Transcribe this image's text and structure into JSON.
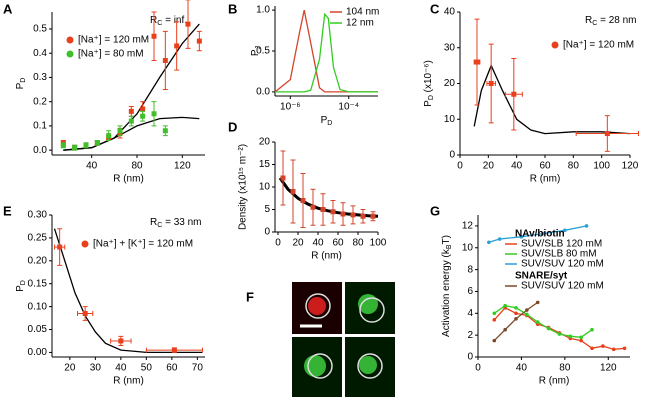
{
  "chart_data": [
    {
      "type": "scatter",
      "panel": "A",
      "xlabel": "R (nm)",
      "ylabel": {
        "text": "P",
        "sub": "D"
      },
      "annotation": {
        "text": "R",
        "sub": "C",
        "after": " = inf."
      },
      "xlim": [
        5,
        140
      ],
      "xticks": [
        40,
        80,
        120
      ],
      "ylim": [
        -0.02,
        0.57
      ],
      "yticks": [
        {
          "value": 0,
          "label": "0.0"
        },
        0.1,
        0.2,
        0.3,
        0.4,
        0.5
      ],
      "series": [
        {
          "name": "[Na⁺] = 120 mM",
          "color": "#e8401c",
          "x": [
            15,
            25,
            35,
            45,
            55,
            65,
            75,
            85,
            95,
            105,
            115,
            125,
            135
          ],
          "values": [
            0.03,
            0.01,
            0.02,
            0.03,
            0.05,
            0.07,
            0.16,
            0.17,
            0.47,
            0.37,
            0.43,
            0.52,
            0.45
          ],
          "errors": [
            0.01,
            0.01,
            0.01,
            0.01,
            0.01,
            0.02,
            0.02,
            0.03,
            0.1,
            0.12,
            0.1,
            0.1,
            0.04
          ]
        },
        {
          "name": "[Na⁺] = 80 mM",
          "color": "#3fbf2a",
          "x": [
            15,
            25,
            35,
            45,
            55,
            65,
            75,
            85,
            95,
            105
          ],
          "values": [
            0.02,
            0.01,
            0.02,
            0.03,
            0.06,
            0.08,
            0.12,
            0.14,
            0.15,
            0.08
          ],
          "errors": [
            0.01,
            0.01,
            0.01,
            0.01,
            0.02,
            0.02,
            0.02,
            0.02,
            0.05,
            0.02
          ]
        }
      ],
      "fits": [
        {
          "color": "#000000",
          "x": [
            15,
            40,
            60,
            80,
            100,
            120,
            135
          ],
          "values": [
            0,
            0.01,
            0.05,
            0.15,
            0.3,
            0.44,
            0.52
          ]
        },
        {
          "color": "#000000",
          "x": [
            15,
            40,
            60,
            80,
            100,
            120,
            135
          ],
          "values": [
            0,
            0.01,
            0.05,
            0.1,
            0.13,
            0.135,
            0.13
          ]
        }
      ]
    },
    {
      "type": "line",
      "panel": "B",
      "xlabel": {
        "text": "P",
        "sub": "D"
      },
      "ylabel": {
        "text": "P",
        "sub": "J"
      },
      "xscale": "log",
      "xlim": [
        3e-07,
        0.001
      ],
      "xticks": [
        {
          "value": 1e-06,
          "label": "10⁻⁶"
        },
        {
          "value": 0.0001,
          "label": "10⁻⁴"
        }
      ],
      "ylim": [
        -0.05,
        1.05
      ],
      "yticks": [
        {
          "value": 0,
          "label": "0.0"
        },
        0.5,
        {
          "value": 1,
          "label": "1.0"
        }
      ],
      "x": [
        3e-07,
        1e-06,
        2e-06,
        3e-06,
        5e-06,
        1e-05,
        1.5e-05,
        2e-05,
        3e-05,
        5e-05,
        0.0001,
        0.001
      ],
      "series": [
        {
          "name": "104 nm",
          "color": "#d4442a",
          "values": [
            0,
            0.15,
            0.7,
            1.0,
            0.6,
            0.05,
            0,
            0,
            0,
            0,
            0,
            0
          ]
        },
        {
          "name": "12 nm",
          "color": "#33cc22",
          "values": [
            0,
            0,
            0,
            0,
            0.02,
            0.4,
            0.95,
            0.9,
            0.3,
            0.03,
            0,
            0
          ]
        }
      ]
    },
    {
      "type": "scatter",
      "panel": "C",
      "xlabel": "R (nm)",
      "ylabel": {
        "text": "P",
        "sub": "D",
        "after": " (x10⁻⁶)"
      },
      "annotation": {
        "text": "R",
        "sub": "C",
        "after": " = 28 nm"
      },
      "xlim": [
        0,
        120
      ],
      "xticks": [
        0,
        20,
        40,
        60,
        80,
        100,
        120
      ],
      "ylim": [
        0,
        40
      ],
      "yticks": [
        0,
        10,
        20,
        30,
        40
      ],
      "series": [
        {
          "name": "[Na⁺] = 120 mM",
          "color": "#e8401c",
          "x": [
            12,
            22,
            38,
            104
          ],
          "values": [
            26,
            20,
            17,
            6
          ],
          "errors": [
            12,
            11,
            10,
            5
          ],
          "xerrors": [
            2,
            3,
            6,
            22
          ]
        }
      ],
      "fits": [
        {
          "color": "#000000",
          "x": [
            10,
            15,
            22,
            30,
            40,
            50,
            60,
            80,
            100,
            120
          ],
          "values": [
            8,
            18,
            25,
            18,
            10,
            7,
            6,
            6.5,
            6.5,
            6
          ]
        }
      ]
    },
    {
      "type": "scatter",
      "panel": "D",
      "xlabel": "R (nm)",
      "ylabel": "Density (x10¹⁵ m⁻²)",
      "xlim": [
        -3,
        100
      ],
      "xticks": [
        0,
        20,
        40,
        60,
        80,
        100
      ],
      "ylim": [
        0,
        20
      ],
      "yticks": [
        0,
        5,
        10,
        15,
        20
      ],
      "series": [
        {
          "color": "#d4442a",
          "x": [
            5,
            15,
            25,
            35,
            45,
            55,
            65,
            75,
            85,
            95
          ],
          "values": [
            12,
            9,
            7,
            5.5,
            5,
            4.5,
            4,
            3.8,
            3.5,
            3.5
          ],
          "errors": [
            6,
            7,
            6,
            4,
            3.5,
            2.5,
            2.5,
            2,
            1.5,
            1
          ]
        }
      ],
      "fits": [
        {
          "color": "#000000",
          "x": [
            2,
            10,
            20,
            30,
            40,
            50,
            60,
            70,
            80,
            90,
            100
          ],
          "values": [
            12,
            9.5,
            7.5,
            6.2,
            5.3,
            4.7,
            4.3,
            4,
            3.8,
            3.6,
            3.5
          ]
        }
      ]
    },
    {
      "type": "scatter",
      "panel": "E",
      "xlabel": "R (nm)",
      "ylabel": {
        "text": "P",
        "sub": "D"
      },
      "annotation": {
        "text": "R",
        "sub": "C",
        "after": " = 33 nm"
      },
      "xlim": [
        13,
        73
      ],
      "xticks": [
        20,
        30,
        40,
        50,
        60,
        70
      ],
      "ylim": [
        -0.01,
        0.3
      ],
      "yticks": [
        {
          "value": 0,
          "label": "0.00"
        },
        0.05,
        {
          "value": 0.1,
          "label": "0.10"
        },
        0.15,
        {
          "value": 0.2,
          "label": "0.20"
        },
        0.25,
        {
          "value": 0.3,
          "label": "0.30"
        }
      ],
      "series": [
        {
          "name": "[Na⁺] + [K⁺] = 120 mM",
          "color": "#e8401c",
          "x": [
            16,
            26,
            40,
            61
          ],
          "values": [
            0.23,
            0.085,
            0.025,
            0.005
          ],
          "errors": [
            0.04,
            0.015,
            0.01,
            0.005
          ],
          "xerrors": [
            2,
            3,
            4,
            11
          ]
        }
      ],
      "fits": [
        {
          "color": "#000000",
          "x": [
            14,
            18,
            22,
            26,
            30,
            34,
            40,
            50,
            60,
            72
          ],
          "values": [
            0.27,
            0.2,
            0.13,
            0.08,
            0.045,
            0.02,
            0.005,
            0,
            0,
            0
          ]
        }
      ]
    },
    {
      "type": "line",
      "panel": "G",
      "xlabel": "R (nm)",
      "ylabel": {
        "text": "Activation energy  (k",
        "sub": "B",
        "after": "T)"
      },
      "legend_headers": [
        "NAv/biotin",
        "SNARE/syt"
      ],
      "xlim": [
        0,
        140
      ],
      "xticks": [
        0,
        40,
        80,
        120
      ],
      "ylim": [
        0,
        13
      ],
      "yticks": [
        0,
        2,
        4,
        6,
        8,
        10,
        12
      ],
      "series": [
        {
          "name": "SUV/SLB  120 mM",
          "color": "#e8401c",
          "x": [
            15,
            25,
            35,
            45,
            55,
            65,
            75,
            85,
            95,
            105,
            115,
            125,
            135
          ],
          "values": [
            3.4,
            4.5,
            4,
            3.8,
            3,
            2.7,
            2.2,
            1.7,
            1.5,
            0.8,
            1,
            0.7,
            0.8
          ]
        },
        {
          "name": "SUV/SLB    80 mM",
          "color": "#33cc22",
          "x": [
            15,
            25,
            35,
            45,
            55,
            65,
            75,
            85,
            95,
            105
          ],
          "values": [
            4,
            4.7,
            4.5,
            3.9,
            3.2,
            2.6,
            2.1,
            1.9,
            1.8,
            2.5
          ]
        },
        {
          "name": "SUV/SUV 120 mM",
          "color": "#2a9fd8",
          "x": [
            10,
            20,
            40,
            60,
            80,
            100
          ],
          "values": [
            10.5,
            10.8,
            11,
            11.3,
            11.6,
            12
          ]
        },
        {
          "name": "SUV/SUV 120 mM",
          "color": "#7a4a2a",
          "x": [
            15,
            25,
            35,
            45,
            55
          ],
          "values": [
            1.5,
            2.5,
            3.5,
            4.3,
            5
          ]
        }
      ]
    }
  ],
  "image_panel": {
    "label": "F"
  }
}
